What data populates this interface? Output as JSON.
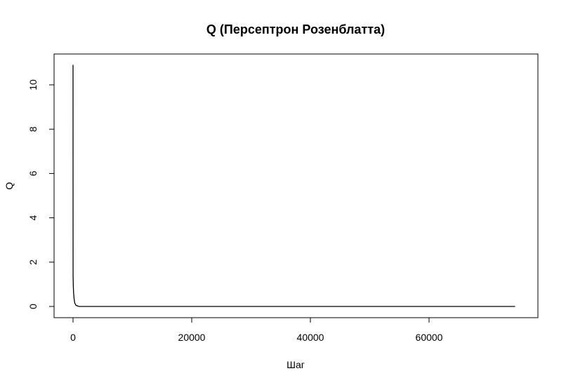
{
  "chart_data": {
    "type": "line",
    "title": "Q (Персептрон Розенблатта)",
    "xlabel": "Шаг",
    "ylabel": "Q",
    "xlim": [
      0,
      75000
    ],
    "ylim": [
      0,
      11
    ],
    "x_ticks": [
      0,
      20000,
      40000,
      60000
    ],
    "y_ticks": [
      0,
      2,
      4,
      6,
      8,
      10
    ],
    "grid": false,
    "legend": "none",
    "series": [
      {
        "color": "#000000",
        "x": [
          0,
          5,
          10,
          50,
          100,
          200,
          300,
          500,
          1000,
          5000,
          20000,
          40000,
          60000,
          74500
        ],
        "y": [
          10.9,
          4.1,
          1.4,
          0.9,
          0.6,
          0.3,
          0.15,
          0.05,
          0.0,
          0.0,
          0.0,
          0.0,
          0.0,
          0.0
        ]
      }
    ]
  }
}
